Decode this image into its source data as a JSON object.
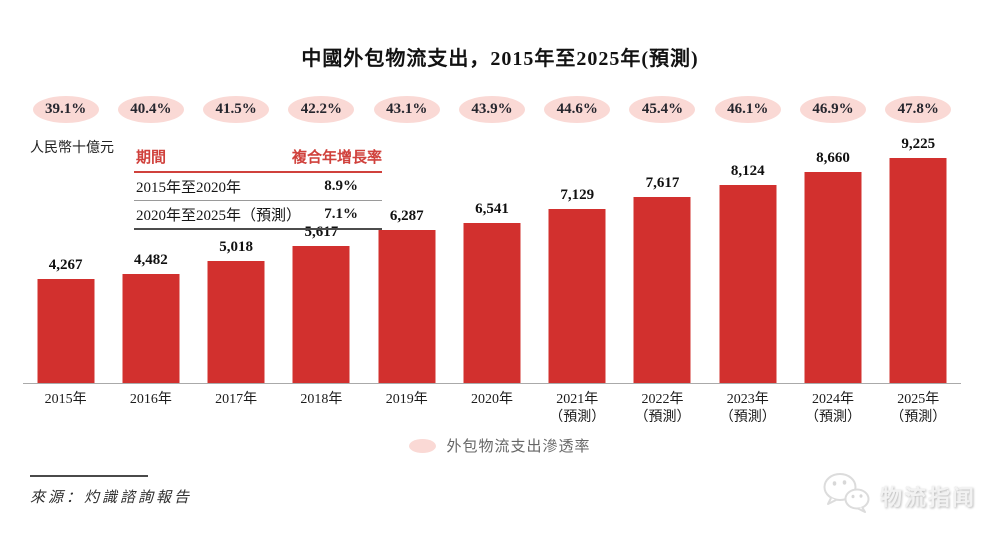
{
  "title": "中國外包物流支出，2015年至2025年(預測)",
  "unit_label": "人民幣十億元",
  "cagr_table": {
    "col_period": "期間",
    "col_cagr": "複合年增長率",
    "rows": [
      {
        "period": "2015年至2020年",
        "cagr": "8.9%"
      },
      {
        "period": "2020年至2025年（預測）",
        "cagr": "7.1%"
      }
    ]
  },
  "legend_label": "外包物流支出滲透率",
  "source": "來源：灼識諮詢報告",
  "watermark_text": "物流指闻",
  "colors": {
    "bar": "#d2302e",
    "pill_bg": "#fad9d5",
    "red_text": "#d0413c"
  },
  "chart_data": {
    "type": "bar",
    "title": "中國外包物流支出，2015年至2025年(預測)",
    "ylabel": "人民幣十億元",
    "ylim": [
      0,
      9500
    ],
    "grid": false,
    "legend_position": "bottom",
    "categories": [
      {
        "year": "2015年",
        "note": ""
      },
      {
        "year": "2016年",
        "note": ""
      },
      {
        "year": "2017年",
        "note": ""
      },
      {
        "year": "2018年",
        "note": ""
      },
      {
        "year": "2019年",
        "note": ""
      },
      {
        "year": "2020年",
        "note": ""
      },
      {
        "year": "2021年",
        "note": "（預測）"
      },
      {
        "year": "2022年",
        "note": "（預測）"
      },
      {
        "year": "2023年",
        "note": "（預測）"
      },
      {
        "year": "2024年",
        "note": "（預測）"
      },
      {
        "year": "2025年",
        "note": "（預測）"
      }
    ],
    "series": [
      {
        "name": "外包物流支出",
        "values": [
          4267,
          4482,
          5018,
          5617,
          6287,
          6541,
          7129,
          7617,
          8124,
          8660,
          9225
        ],
        "labels": [
          "4,267",
          "4,482",
          "5,018",
          "5,617",
          "6,287",
          "6,541",
          "7,129",
          "7,617",
          "8,124",
          "8,660",
          "9,225"
        ]
      },
      {
        "name": "外包物流支出滲透率",
        "unit": "%",
        "values": [
          39.1,
          40.4,
          41.5,
          42.2,
          43.1,
          43.9,
          44.6,
          45.4,
          46.1,
          46.9,
          47.8
        ],
        "labels": [
          "39.1%",
          "40.4%",
          "41.5%",
          "42.2%",
          "43.1%",
          "43.9%",
          "44.6%",
          "45.4%",
          "46.1%",
          "46.9%",
          "47.8%"
        ]
      }
    ],
    "cagr": [
      {
        "period": "2015年至2020年",
        "value": "8.9%"
      },
      {
        "period": "2020年至2025年（預測）",
        "value": "7.1%"
      }
    ]
  }
}
